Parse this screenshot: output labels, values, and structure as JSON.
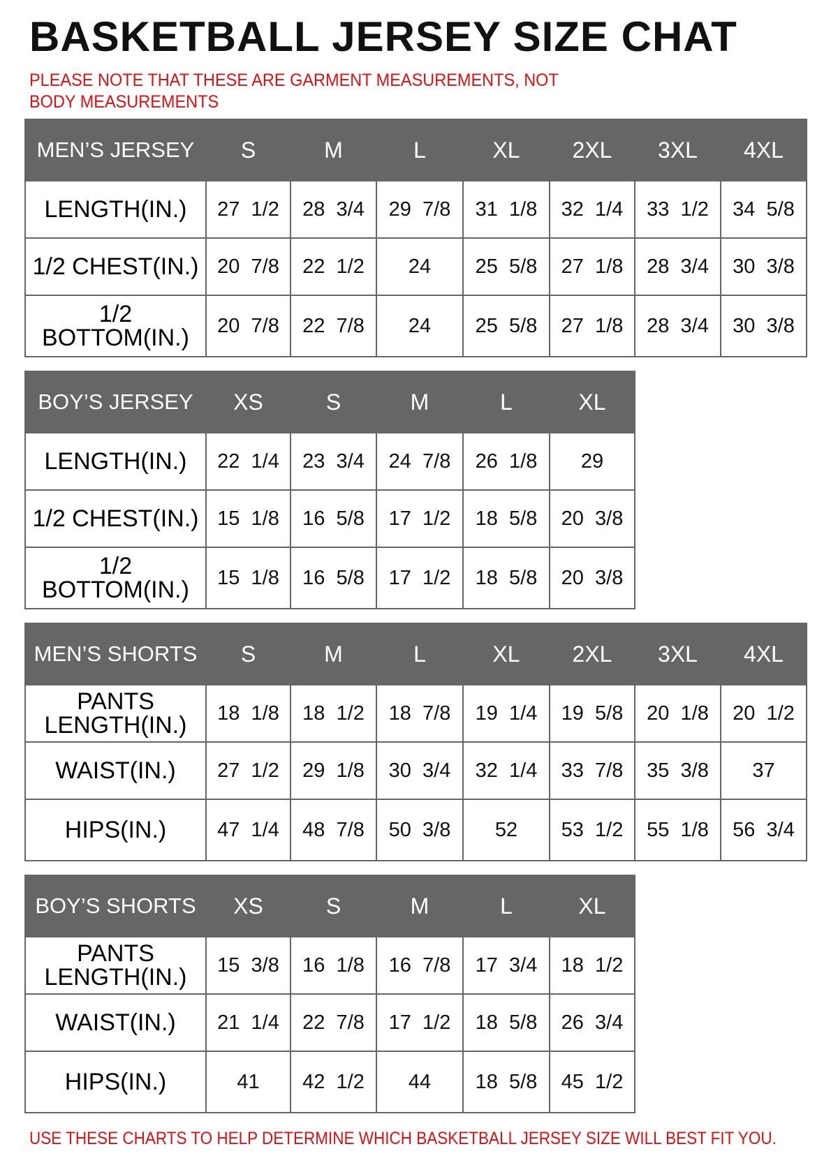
{
  "title": "BASKETBALL JERSEY SIZE CHAT",
  "note": "PLEASE NOTE THAT THESE ARE GARMENT MEASUREMENTS, NOT BODY MEASUREMENTS",
  "tables": [
    {
      "header": [
        "MEN’S JERSEY",
        "S",
        "M",
        "L",
        "XL",
        "2XL",
        "3XL",
        "4XL"
      ],
      "rows": [
        [
          "LENGTH(IN.)",
          "27  1/2",
          "28  3/4",
          "29  7/8",
          "31  1/8",
          "32  1/4",
          "33  1/2",
          "34  5/8"
        ],
        [
          "1/2  CHEST(IN.)",
          "20  7/8",
          "22  1/2",
          "24",
          "25  5/8",
          "27  1/8",
          "28  3/4",
          "30  3/8"
        ],
        [
          "1/2  BOTTOM(IN.)",
          "20  7/8",
          "22  7/8",
          "24",
          "25  5/8",
          "27  1/8",
          "28  3/4",
          "30  3/8"
        ]
      ]
    },
    {
      "header": [
        "BOY’S JERSEY",
        "XS",
        "S",
        "M",
        "L",
        "XL"
      ],
      "rows": [
        [
          "LENGTH(IN.)",
          "22  1/4",
          "23  3/4",
          "24  7/8",
          "26  1/8",
          "29"
        ],
        [
          "1/2  CHEST(IN.)",
          "15  1/8",
          "16  5/8",
          "17  1/2",
          "18  5/8",
          "20  3/8"
        ],
        [
          "1/2  BOTTOM(IN.)",
          "15  1/8",
          "16  5/8",
          "17  1/2",
          "18  5/8",
          "20  3/8"
        ]
      ]
    },
    {
      "header": [
        "MEN’S SHORTS",
        "S",
        "M",
        "L",
        "XL",
        "2XL",
        "3XL",
        "4XL"
      ],
      "rows": [
        [
          "PANTS LENGTH(IN.)",
          "18  1/8",
          "18  1/2",
          "18  7/8",
          "19  1/4",
          "19  5/8",
          "20  1/8",
          "20  1/2"
        ],
        [
          "WAIST(IN.)",
          "27  1/2",
          "29  1/8",
          "30  3/4",
          "32  1/4",
          "33  7/8",
          "35  3/8",
          "37"
        ],
        [
          "HIPS(IN.)",
          "47  1/4",
          "48  7/8",
          "50  3/8",
          "52",
          "53  1/2",
          "55  1/8",
          "56  3/4"
        ]
      ]
    },
    {
      "header": [
        "BOY’S SHORTS",
        "XS",
        "S",
        "M",
        "L",
        "XL"
      ],
      "rows": [
        [
          "PANTS LENGTH(IN.)",
          "15  3/8",
          "16  1/8",
          "16  7/8",
          "17  3/4",
          "18  1/2"
        ],
        [
          "WAIST(IN.)",
          "21  1/4",
          "22  7/8",
          "17  1/2",
          "18  5/8",
          "26  3/4"
        ],
        [
          "HIPS(IN.)",
          "41",
          "42  1/2",
          "44",
          "18  5/8",
          "45  1/2"
        ]
      ]
    }
  ],
  "footer": "USE THESE CHARTS TO HELP DETERMINE WHICH BASKETBALL JERSEY SIZE WILL BEST FIT YOU."
}
